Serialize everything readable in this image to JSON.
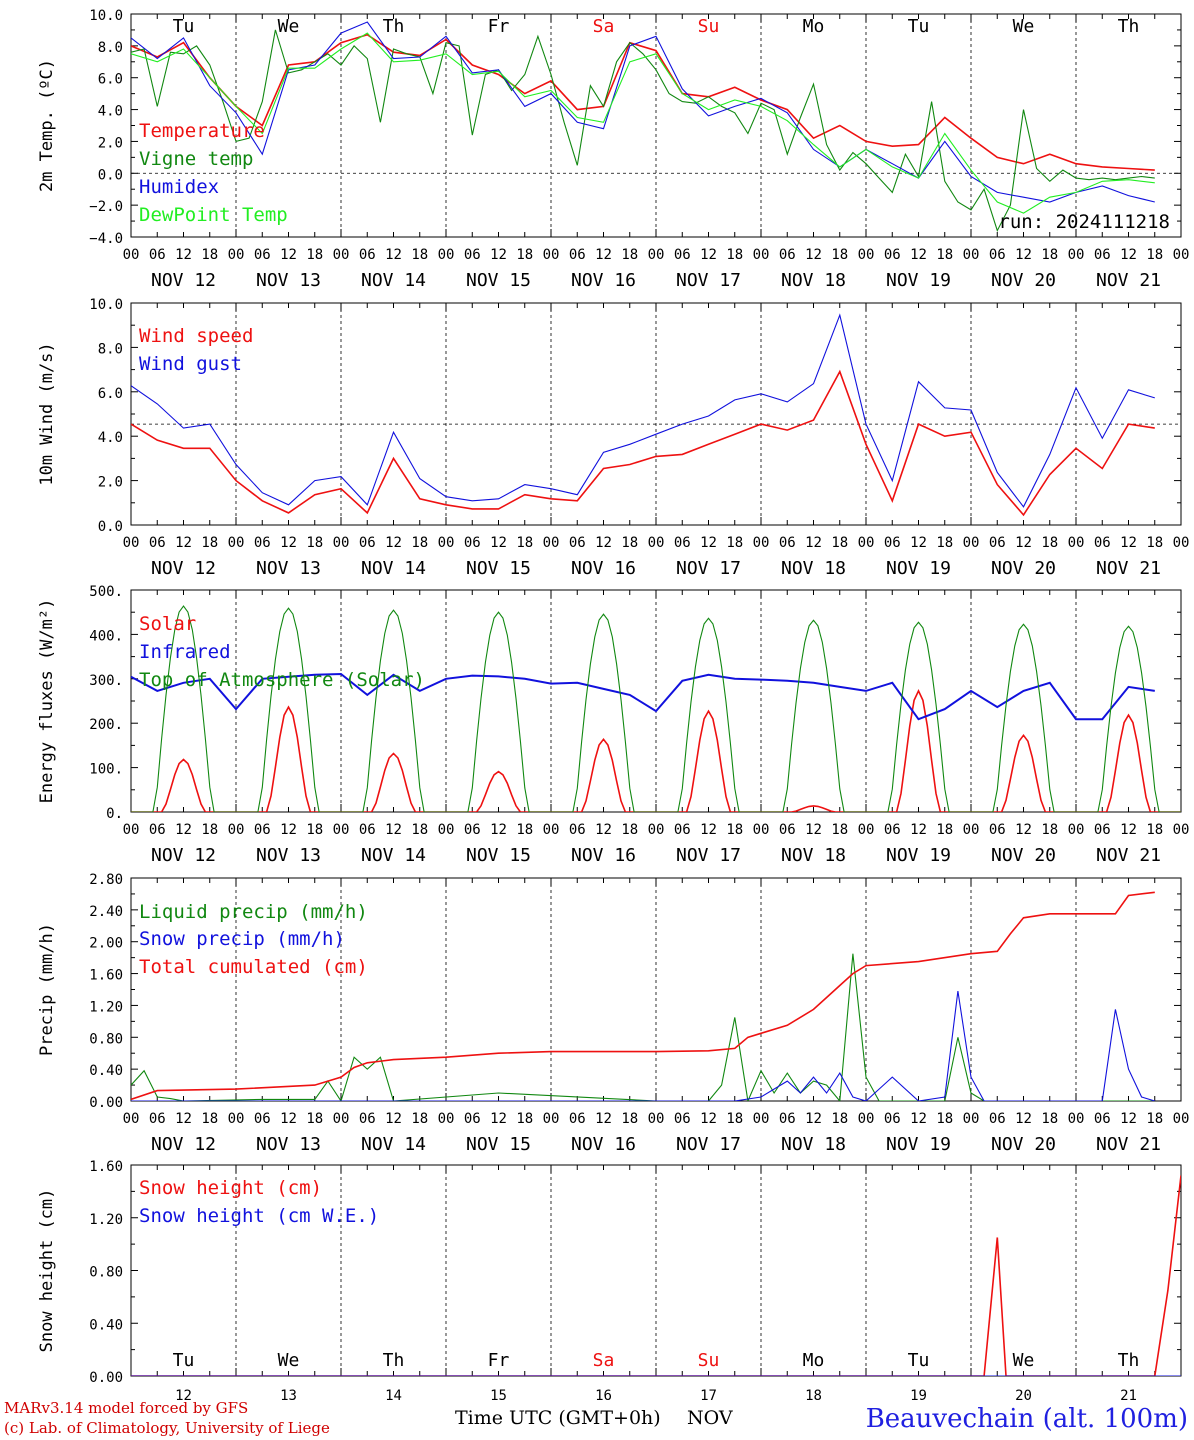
{
  "colors": {
    "red": "#ee1111",
    "green": "#118811",
    "blue": "#1111dd",
    "lightgreen": "#22ee22",
    "darkred": "#dd0000"
  },
  "x_axis": {
    "hour_labels": [
      "00",
      "06",
      "12",
      "18"
    ],
    "end_label": "00",
    "dates": [
      "NOV 12",
      "NOV 13",
      "NOV 14",
      "NOV 15",
      "NOV 16",
      "NOV 17",
      "NOV 18",
      "NOV 19",
      "NOV 20",
      "NOV 21"
    ],
    "weekdays": [
      "Tu",
      "We",
      "Th",
      "Fr",
      "Sa",
      "Su",
      "Mo",
      "Tu",
      "We",
      "Th"
    ],
    "weekend_days": [
      4,
      5
    ],
    "day_numbers": [
      "12",
      "13",
      "14",
      "15",
      "16",
      "17",
      "18",
      "19",
      "20",
      "21"
    ],
    "title": "Time UTC (GMT+0h)",
    "month": "NOV"
  },
  "run_label": "run: 2024111218",
  "footer": {
    "line1": "MARv3.14 model forced by GFS",
    "line2": "(c) Lab. of Climatology, University of Liege",
    "station": "Beauvechain (alt. 100m)"
  },
  "chart_data": [
    {
      "type": "line",
      "ylabel": "2m Temp. (ºC)",
      "ylim": [
        -4,
        10
      ],
      "yticks": [
        "10.0",
        "8.0",
        "6.0",
        "4.0",
        "2.0",
        "0.0",
        "−2.0",
        "−4.0"
      ],
      "reference_line": 0,
      "x_unit": "hours since Nov 12 00 UTC",
      "series": [
        {
          "name": "Temperature",
          "color": "#ee1111",
          "x": [
            0,
            6,
            12,
            18,
            24,
            30,
            36,
            42,
            48,
            54,
            60,
            66,
            72,
            78,
            84,
            90,
            96,
            102,
            108,
            114,
            120,
            126,
            132,
            138,
            144,
            150,
            156,
            162,
            168,
            174,
            180,
            186,
            192,
            198,
            204,
            210,
            216,
            222,
            228,
            234
          ],
          "values": [
            8.0,
            7.3,
            8.2,
            6.0,
            4.2,
            3.0,
            6.8,
            7.0,
            8.2,
            8.7,
            7.6,
            7.4,
            8.4,
            6.8,
            6.2,
            5.0,
            5.8,
            4.0,
            4.2,
            8.2,
            7.7,
            5.0,
            4.8,
            5.4,
            4.6,
            4.0,
            2.2,
            3.0,
            2.0,
            1.7,
            1.8,
            3.5,
            2.2,
            1.0,
            0.6,
            1.2,
            0.6,
            0.4,
            0.3,
            0.2
          ]
        },
        {
          "name": "Vigne temp",
          "color": "#118811",
          "x": [
            0,
            3,
            6,
            9,
            12,
            15,
            18,
            21,
            24,
            27,
            30,
            33,
            36,
            39,
            42,
            45,
            48,
            51,
            54,
            57,
            60,
            63,
            66,
            69,
            72,
            75,
            78,
            81,
            84,
            87,
            90,
            93,
            96,
            99,
            102,
            105,
            108,
            111,
            114,
            117,
            120,
            123,
            126,
            129,
            132,
            135,
            138,
            141,
            144,
            147,
            150,
            153,
            156,
            159,
            162,
            165,
            168,
            171,
            174,
            177,
            180,
            183,
            186,
            189,
            192,
            195,
            198,
            201,
            204,
            207,
            210,
            213,
            216,
            219,
            222,
            225,
            228,
            231,
            234
          ],
          "values": [
            7.6,
            7.8,
            4.2,
            7.6,
            7.5,
            8.0,
            6.8,
            4.5,
            2.0,
            2.2,
            4.5,
            9.0,
            6.3,
            6.5,
            7.0,
            7.5,
            6.8,
            8.0,
            7.2,
            3.2,
            7.8,
            7.5,
            7.3,
            5.0,
            8.2,
            8.0,
            2.4,
            6.2,
            6.5,
            5.2,
            6.2,
            8.6,
            6.2,
            3.2,
            0.5,
            5.5,
            4.2,
            7.0,
            8.2,
            7.5,
            6.5,
            5.0,
            4.5,
            4.4,
            4.8,
            4.2,
            3.8,
            2.5,
            4.4,
            4.0,
            1.2,
            3.5,
            5.6,
            1.8,
            0.2,
            1.3,
            0.6,
            -0.3,
            -1.2,
            1.2,
            -0.2,
            4.5,
            -0.5,
            -1.8,
            -2.3,
            -1.0,
            -3.6,
            -2.0,
            4.0,
            0.3,
            -0.5,
            0.2,
            -0.3,
            -0.4,
            -0.3,
            -0.4,
            -0.3,
            -0.2,
            -0.3
          ]
        },
        {
          "name": "Humidex",
          "color": "#1111dd",
          "x": [
            0,
            6,
            12,
            18,
            24,
            30,
            36,
            42,
            48,
            54,
            60,
            66,
            72,
            78,
            84,
            90,
            96,
            102,
            108,
            114,
            120,
            126,
            132,
            138,
            144,
            150,
            156,
            162,
            168,
            174,
            180,
            186,
            192,
            198,
            204,
            210,
            216,
            222,
            228,
            234
          ],
          "values": [
            8.5,
            7.2,
            8.5,
            5.5,
            3.8,
            1.2,
            6.5,
            6.8,
            8.8,
            9.5,
            7.2,
            7.3,
            8.6,
            6.3,
            6.5,
            4.2,
            5.0,
            3.2,
            2.8,
            8.0,
            8.6,
            5.3,
            3.6,
            4.2,
            4.7,
            3.8,
            1.5,
            0.4,
            1.5,
            0.6,
            -0.3,
            2.0,
            -0.2,
            -1.2,
            -1.5,
            -1.8,
            -1.2,
            -0.8,
            -1.4,
            -1.8
          ]
        },
        {
          "name": "DewPoint Temp",
          "color": "#22ee22",
          "x": [
            0,
            6,
            12,
            18,
            24,
            30,
            36,
            42,
            48,
            54,
            60,
            66,
            72,
            78,
            84,
            90,
            96,
            102,
            108,
            114,
            120,
            126,
            132,
            138,
            144,
            150,
            156,
            162,
            168,
            174,
            180,
            186,
            192,
            198,
            204,
            210,
            216,
            222,
            228,
            234
          ],
          "values": [
            7.5,
            7.0,
            7.8,
            6.0,
            4.2,
            2.5,
            6.6,
            6.6,
            7.8,
            8.8,
            7.0,
            7.1,
            7.5,
            6.2,
            6.4,
            4.8,
            5.2,
            3.5,
            3.2,
            7.0,
            7.5,
            5.0,
            4.0,
            4.6,
            4.2,
            3.3,
            1.8,
            0.4,
            1.5,
            0.4,
            -0.3,
            2.5,
            0.2,
            -1.8,
            -2.5,
            -1.5,
            -1.2,
            -0.5,
            -0.4,
            -0.6
          ]
        }
      ]
    },
    {
      "type": "line",
      "ylabel": "10m Wind (m/s)",
      "ylim": [
        0,
        11
      ],
      "yticks": [
        "10.0",
        "8.0",
        "6.0",
        "4.0",
        "2.0",
        "0.0"
      ],
      "reference_line": 5,
      "x_unit": "hours since Nov 12 00 UTC",
      "series": [
        {
          "name": "Wind speed",
          "color": "#ee1111",
          "x": [
            0,
            6,
            12,
            18,
            24,
            30,
            36,
            42,
            48,
            54,
            60,
            66,
            72,
            78,
            84,
            90,
            96,
            102,
            108,
            114,
            120,
            126,
            132,
            138,
            144,
            150,
            156,
            162,
            168,
            174,
            180,
            186,
            192,
            198,
            204,
            210,
            216,
            222,
            228,
            234
          ],
          "values": [
            5.0,
            4.2,
            3.8,
            3.8,
            2.2,
            1.2,
            0.6,
            1.5,
            1.8,
            0.6,
            3.3,
            1.3,
            1.0,
            0.8,
            0.8,
            1.5,
            1.3,
            1.2,
            2.8,
            3.0,
            3.4,
            3.5,
            4.0,
            4.5,
            5.0,
            4.7,
            5.2,
            7.6,
            4.0,
            1.2,
            5.0,
            4.4,
            4.6,
            2.0,
            0.5,
            2.5,
            3.8,
            2.8,
            5.0,
            4.8
          ]
        },
        {
          "name": "Wind gust",
          "color": "#1111dd",
          "x": [
            0,
            6,
            12,
            18,
            24,
            30,
            36,
            42,
            48,
            54,
            60,
            66,
            72,
            78,
            84,
            90,
            96,
            102,
            108,
            114,
            120,
            126,
            132,
            138,
            144,
            150,
            156,
            162,
            168,
            174,
            180,
            186,
            192,
            198,
            204,
            210,
            216,
            222,
            228,
            234
          ],
          "values": [
            6.9,
            6.0,
            4.8,
            5.0,
            3.0,
            1.6,
            1.0,
            2.2,
            2.4,
            1.0,
            4.6,
            2.3,
            1.4,
            1.2,
            1.3,
            2.0,
            1.8,
            1.5,
            3.6,
            4.0,
            4.5,
            5.0,
            5.4,
            6.2,
            6.5,
            6.1,
            7.0,
            10.4,
            5.0,
            2.2,
            7.1,
            5.8,
            5.7,
            2.6,
            0.9,
            3.5,
            6.8,
            4.3,
            6.7,
            6.3
          ]
        }
      ]
    },
    {
      "type": "line",
      "ylabel": "Energy fluxes (W/m²)",
      "ylim": [
        0,
        550
      ],
      "yticks": [
        "500.",
        "400.",
        "300.",
        "200.",
        "100.",
        "0."
      ],
      "x_unit": "hours since Nov 12 00 UTC",
      "day_peaks": {
        "Solar": [
          130,
          260,
          145,
          100,
          180,
          250,
          15,
          300,
          190,
          240
        ],
        "Top of Atmosphere (Solar)": [
          510,
          505,
          500,
          495,
          490,
          480,
          475,
          470,
          465,
          460
        ]
      },
      "series": [
        {
          "name": "Solar",
          "color": "#ee1111"
        },
        {
          "name": "Infrared",
          "color": "#1111dd",
          "x": [
            0,
            6,
            12,
            18,
            24,
            30,
            36,
            42,
            48,
            54,
            60,
            66,
            72,
            78,
            84,
            90,
            96,
            102,
            108,
            114,
            120,
            126,
            132,
            138,
            144,
            150,
            156,
            162,
            168,
            174,
            180,
            186,
            192,
            198,
            204,
            210,
            216,
            222,
            228,
            234
          ],
          "values": [
            335,
            300,
            320,
            330,
            255,
            330,
            335,
            340,
            342,
            290,
            340,
            300,
            330,
            338,
            336,
            330,
            318,
            320,
            305,
            290,
            250,
            325,
            340,
            330,
            328,
            325,
            320,
            310,
            300,
            320,
            230,
            255,
            300,
            260,
            300,
            320,
            230,
            230,
            310,
            300
          ]
        },
        {
          "name": "Top of Atmosphere (Solar)",
          "color": "#118811"
        }
      ]
    },
    {
      "type": "line",
      "ylabel": "Precip (mm/h)",
      "ylim": [
        0,
        2.8
      ],
      "yticks": [
        "2.80",
        "2.40",
        "2.00",
        "1.60",
        "1.20",
        "0.80",
        "0.40",
        "0.00"
      ],
      "x_unit": "hours since Nov 12 00 UTC",
      "series": [
        {
          "name": "Liquid precip (mm/h)",
          "color": "#118811",
          "x": [
            0,
            3,
            6,
            9,
            12,
            30,
            42,
            45,
            48,
            51,
            54,
            57,
            60,
            84,
            120,
            132,
            135,
            138,
            141,
            144,
            147,
            150,
            153,
            156,
            159,
            162,
            165,
            168,
            171,
            186,
            189,
            192,
            195,
            198,
            234
          ],
          "values": [
            0.2,
            0.38,
            0.05,
            0.03,
            0.0,
            0.02,
            0.02,
            0.25,
            0.0,
            0.55,
            0.4,
            0.55,
            0.0,
            0.1,
            0.0,
            0.0,
            0.2,
            1.05,
            0.0,
            0.38,
            0.1,
            0.35,
            0.1,
            0.25,
            0.2,
            0.0,
            1.85,
            0.3,
            0.0,
            0.0,
            0.8,
            0.1,
            0.0,
            0.0,
            0.0
          ]
        },
        {
          "name": "Snow precip (mm/h)",
          "color": "#1111dd",
          "x": [
            0,
            138,
            144,
            150,
            153,
            156,
            159,
            162,
            165,
            168,
            174,
            180,
            186,
            189,
            192,
            195,
            198,
            222,
            225,
            228,
            231,
            234
          ],
          "values": [
            0.0,
            0.0,
            0.05,
            0.25,
            0.1,
            0.3,
            0.1,
            0.35,
            0.05,
            0.0,
            0.3,
            0.0,
            0.05,
            1.38,
            0.3,
            0.0,
            0.0,
            0.0,
            1.15,
            0.4,
            0.05,
            0.0
          ]
        },
        {
          "name": "Total cumulated (cm)",
          "color": "#ee1111",
          "x": [
            0,
            6,
            24,
            42,
            48,
            51,
            54,
            60,
            72,
            84,
            96,
            108,
            120,
            132,
            138,
            141,
            144,
            150,
            156,
            159,
            162,
            165,
            168,
            180,
            192,
            198,
            201,
            204,
            210,
            216,
            222,
            225,
            228,
            234
          ],
          "values": [
            0.02,
            0.13,
            0.15,
            0.2,
            0.3,
            0.42,
            0.48,
            0.52,
            0.55,
            0.6,
            0.62,
            0.62,
            0.62,
            0.63,
            0.66,
            0.8,
            0.85,
            0.95,
            1.15,
            1.3,
            1.45,
            1.6,
            1.7,
            1.75,
            1.85,
            1.88,
            2.1,
            2.3,
            2.35,
            2.35,
            2.35,
            2.35,
            2.58,
            2.62
          ]
        }
      ]
    },
    {
      "type": "line",
      "ylabel": "Snow height (cm)",
      "ylim": [
        0,
        1.6
      ],
      "yticks": [
        "1.60",
        "1.20",
        "0.80",
        "0.40",
        "0.00"
      ],
      "x_unit": "hours since Nov 12 00 UTC",
      "series": [
        {
          "name": "Snow height (cm)",
          "color": "#ee1111",
          "x": [
            0,
            192,
            195,
            198,
            200,
            234,
            237,
            240,
            243,
            245,
            247,
            249
          ],
          "values": [
            0.0,
            0.0,
            0.0,
            1.05,
            0.0,
            0.0,
            0.65,
            1.52,
            1.1,
            0.9,
            0.0,
            0.0
          ]
        },
        {
          "name": "Snow height (cm W.E.)",
          "color": "#1111dd",
          "x": [
            0,
            240
          ],
          "values": [
            0.0,
            0.0
          ]
        }
      ]
    }
  ]
}
